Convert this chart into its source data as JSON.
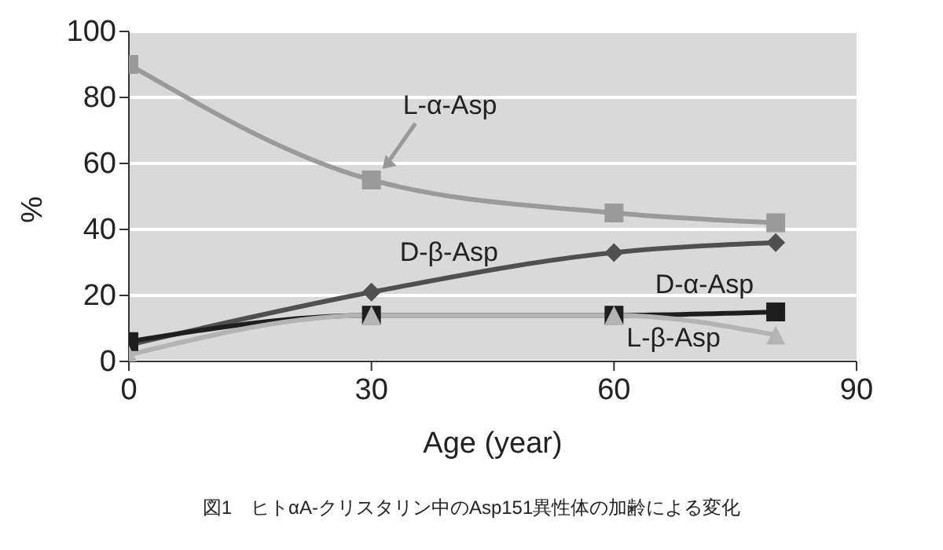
{
  "chart_data": {
    "type": "line",
    "xlabel": "Age (year)",
    "ylabel": "%",
    "x": [
      0,
      30,
      60,
      80
    ],
    "series": [
      {
        "name": "L-α-Asp",
        "color": "#9a9a9a",
        "marker": "square",
        "values": [
          90,
          55,
          45,
          42
        ]
      },
      {
        "name": "D-β-Asp",
        "color": "#505050",
        "marker": "diamond",
        "values": [
          5,
          21,
          33,
          36
        ]
      },
      {
        "name": "D-α-Asp",
        "color": "#1e1e1e",
        "marker": "square",
        "values": [
          6,
          14,
          14,
          15
        ]
      },
      {
        "name": "L-β-Asp",
        "color": "#b4b4b4",
        "marker": "triangle",
        "values": [
          2,
          14,
          14,
          8
        ]
      }
    ],
    "xlim": [
      0,
      90
    ],
    "xticks": [
      0,
      30,
      60,
      90
    ],
    "ylim": [
      0,
      100
    ],
    "yticks": [
      0,
      20,
      40,
      60,
      80,
      100
    ],
    "grid": "y",
    "annotations": [
      "図1　ヒトαA-クリスタリン中のAsp151異性体の加齢による変化"
    ]
  }
}
